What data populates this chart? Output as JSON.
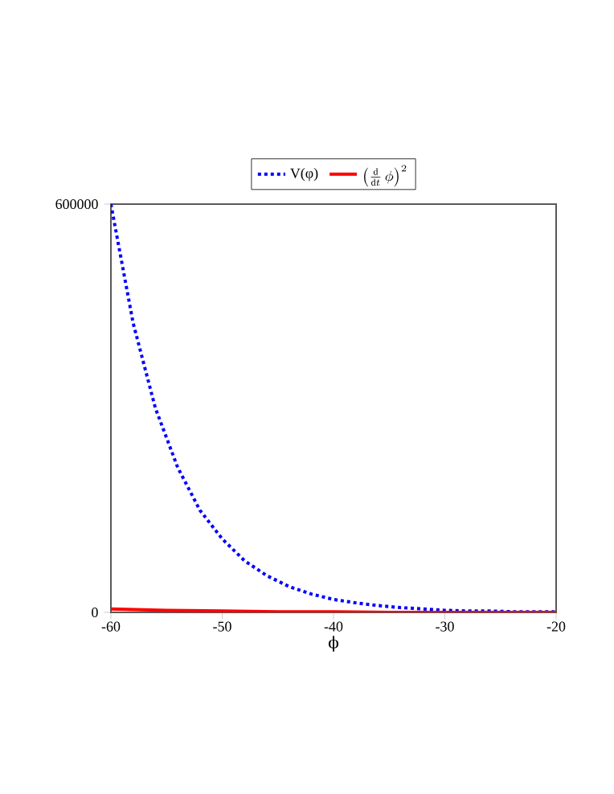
{
  "chart_data": {
    "type": "line",
    "xlabel": "ϕ",
    "series": [
      {
        "name": "V(φ)",
        "color": "#0000ff",
        "line_style": "dotted",
        "x": [
          -60,
          -58,
          -56,
          -54,
          -52,
          -50,
          -48,
          -46,
          -44,
          -42,
          -40,
          -38,
          -36,
          -34,
          -32,
          -30,
          -28,
          -26,
          -24,
          -22,
          -20
        ],
        "values": [
          600000,
          425000,
          300000,
          213000,
          150000,
          108000,
          76000,
          54000,
          38000,
          27000,
          19000,
          14000,
          10000,
          7000,
          5000,
          3000,
          2000,
          2000,
          1000,
          1000,
          1000
        ]
      },
      {
        "name": "\\left(\\frac{\\mathrm{d}}{\\mathrm{d}t}\\,\\phi\\right)^{2}",
        "color": "#ff0000",
        "line_style": "solid",
        "x": [
          -60,
          -55,
          -50,
          -45,
          -40,
          -35,
          -30,
          -25,
          -20
        ],
        "values": [
          5000,
          3000,
          2000,
          1000,
          1000,
          0,
          0,
          0,
          0
        ]
      }
    ],
    "xlim": [
      -60,
      -20
    ],
    "ylim": [
      0,
      600000
    ],
    "xticks": [
      -60,
      -50,
      -40,
      -30,
      -20
    ],
    "yticks": [
      0,
      600000
    ],
    "legend": "top",
    "grid": false
  }
}
